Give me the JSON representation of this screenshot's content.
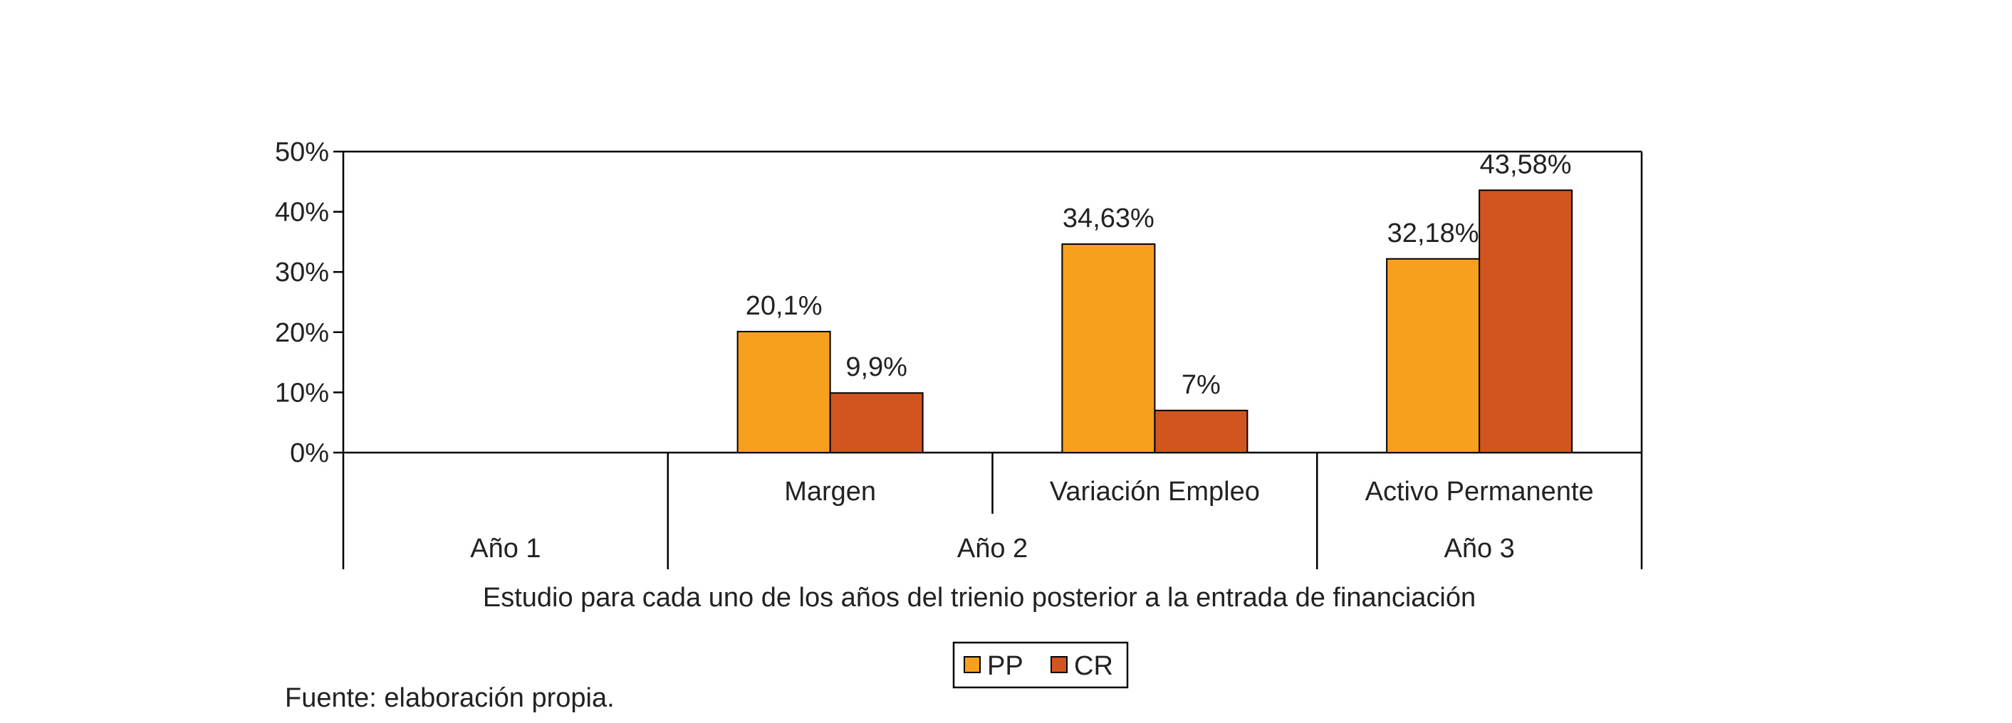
{
  "chart_data": {
    "type": "bar",
    "title": "",
    "xlabel": "Estudio para cada uno de los años del trienio posterior a la entrada de financiación",
    "ylabel": "",
    "ylim": [
      0,
      50
    ],
    "yticks": [
      "0%",
      "10%",
      "20%",
      "30%",
      "40%",
      "50%"
    ],
    "grid": false,
    "legend": "bottom-center",
    "groups": [
      {
        "label": "Año 1",
        "categories": []
      },
      {
        "label": "Año 2",
        "categories": [
          "Margen",
          "Variación Empleo"
        ]
      },
      {
        "label": "Año 3",
        "categories": [
          "Activo Permanente"
        ]
      }
    ],
    "categories": [
      "",
      "Margen",
      "Variación Empleo",
      "Activo Permanente"
    ],
    "series": [
      {
        "name": "PP",
        "color": "#F7A01E",
        "values": [
          null,
          20.1,
          34.63,
          32.18
        ],
        "labels": [
          "",
          "20,1%",
          "34,63%",
          "32,18%"
        ]
      },
      {
        "name": "CR",
        "color": "#D2541F",
        "values": [
          null,
          9.9,
          7,
          43.58
        ],
        "labels": [
          "",
          "9,9%",
          "7%",
          "43,58%"
        ]
      }
    ]
  },
  "footer": {
    "source": "Fuente: elaboración propia."
  }
}
